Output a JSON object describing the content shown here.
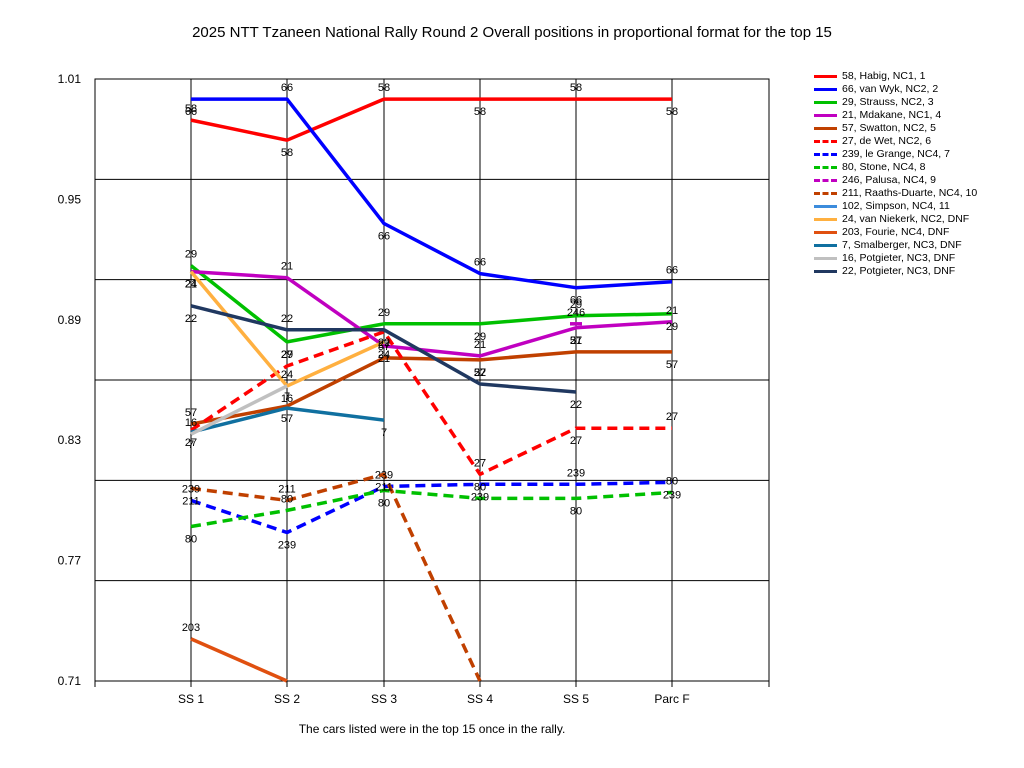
{
  "chart_data": {
    "type": "line",
    "title": "2025 NTT Tzaneen National Rally Round 2  Overall positions in proportional format for the top 15",
    "caption": "The cars listed were in the top 15 once in the rally.",
    "categories": [
      "SS 1",
      "SS 2",
      "SS 3",
      "SS 4",
      "SS 5",
      "Parc F"
    ],
    "ylim": [
      0.71,
      1.01
    ],
    "yticks": [
      "1.01",
      "0.95",
      "0.89",
      "0.83",
      "0.77",
      "0.71"
    ],
    "grid": true,
    "legend_position": "right",
    "series": [
      {
        "name": "58, Habig, NC1, 1",
        "color": "#ff0000",
        "dash": false,
        "label": "58",
        "values": [
          0.9895,
          0.9795,
          1.0,
          1.0,
          1.0,
          1.0
        ]
      },
      {
        "name": "66, van Wyk, NC2, 2",
        "color": "#0000ff",
        "dash": false,
        "label": "66",
        "values": [
          1.0,
          1.0,
          0.938,
          0.913,
          0.906,
          0.909
        ]
      },
      {
        "name": "29, Strauss, NC2, 3",
        "color": "#00c000",
        "dash": false,
        "label": "29",
        "values": [
          0.917,
          0.879,
          0.888,
          0.888,
          0.892,
          0.893
        ]
      },
      {
        "name": "21, Mdakane, NC1, 4",
        "color": "#c000c0",
        "dash": false,
        "label": "21",
        "values": [
          0.914,
          0.911,
          0.877,
          0.872,
          0.886,
          0.889
        ]
      },
      {
        "name": "57, Swatton, NC2, 5",
        "color": "#c04000",
        "dash": false,
        "label": "57",
        "values": [
          0.838,
          0.847,
          0.871,
          0.87,
          0.874,
          0.874
        ]
      },
      {
        "name": "27, de Wet, NC2, 6",
        "color": "#ff0000",
        "dash": true,
        "label": "27",
        "values": [
          0.835,
          0.867,
          0.884,
          0.813,
          0.836,
          0.836
        ]
      },
      {
        "name": "239, le Grange, NC4, 7",
        "color": "#0000ff",
        "dash": true,
        "label": "239",
        "values": [
          0.8,
          0.784,
          0.807,
          0.808,
          0.808,
          0.809
        ]
      },
      {
        "name": "80, Stone, NC4, 8",
        "color": "#00c000",
        "dash": true,
        "label": "80",
        "values": [
          0.787,
          0.795,
          0.805,
          0.801,
          0.801,
          0.804
        ]
      },
      {
        "name": "246, Palusa, NC4, 9",
        "color": "#c000c0",
        "dash": true,
        "label": "246",
        "values": [
          null,
          null,
          null,
          null,
          0.888,
          null
        ]
      },
      {
        "name": "211, Raaths-Duarte, NC4, 10",
        "color": "#c04000",
        "dash": true,
        "label": "211",
        "values": [
          0.806,
          0.8,
          0.813,
          0.71,
          null,
          null
        ]
      },
      {
        "name": "102, Simpson, NC4, 11",
        "color": "#3c8cdc",
        "dash": false,
        "label": "102",
        "values": [
          null,
          null,
          null,
          null,
          null,
          null
        ]
      },
      {
        "name": "24, van Niekerk, NC2,  DNF",
        "color": "#ffb040",
        "dash": false,
        "label": "24",
        "values": [
          0.914,
          0.857,
          0.879,
          null,
          null,
          null
        ]
      },
      {
        "name": "203, Fourie, NC4,  DNF",
        "color": "#e05010",
        "dash": false,
        "label": "203",
        "values": [
          0.731,
          0.71,
          null,
          null,
          null,
          null
        ]
      },
      {
        "name": "7, Smalberger, NC3,  DNF",
        "color": "#1070a0",
        "dash": false,
        "label": "7",
        "values": [
          0.834,
          0.846,
          0.84,
          null,
          null,
          null
        ]
      },
      {
        "name": "16, Potgieter, NC3,  DNF",
        "color": "#c0c0c0",
        "dash": false,
        "label": "16",
        "values": [
          0.833,
          0.857,
          null,
          null,
          null,
          null
        ]
      },
      {
        "name": "22, Potgieter, NC3,  DNF",
        "color": "#203860",
        "dash": false,
        "label": "22",
        "values": [
          0.897,
          0.885,
          0.885,
          0.858,
          0.854,
          null
        ]
      }
    ]
  }
}
